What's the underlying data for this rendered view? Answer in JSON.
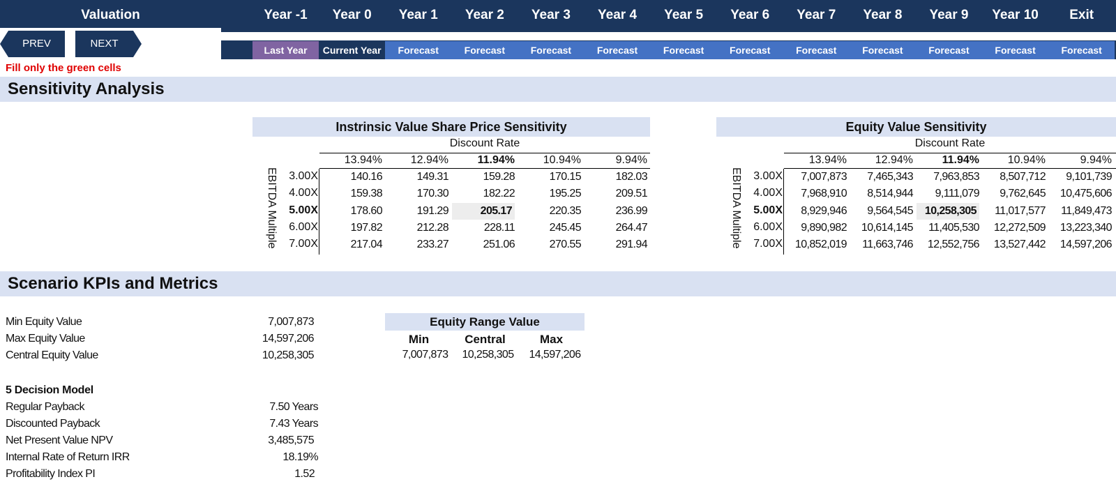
{
  "header": {
    "title": "Valuation",
    "years": [
      "Year -1",
      "Year 0",
      "Year 1",
      "Year 2",
      "Year 3",
      "Year 4",
      "Year 5",
      "Year 6",
      "Year 7",
      "Year 8",
      "Year 9",
      "Year 10",
      "Exit"
    ],
    "subs": [
      "Last Year",
      "Current Year",
      "Forecast",
      "Forecast",
      "Forecast",
      "Forecast",
      "Forecast",
      "Forecast",
      "Forecast",
      "Forecast",
      "Forecast",
      "Forecast",
      "Forecast"
    ]
  },
  "nav": {
    "prev": "PREV",
    "next": "NEXT"
  },
  "note": "Fill only the green cells",
  "sections": {
    "sensitivity": "Sensitivity Analysis",
    "kpis": "Scenario KPIs and Metrics"
  },
  "share_table": {
    "title": "Instrinsic Value Share Price Sensitivity",
    "col_title": "Discount Rate",
    "row_title": "EBITDA Multiple",
    "cols": [
      "13.94%",
      "12.94%",
      "11.94%",
      "10.94%",
      "9.94%"
    ],
    "rows": [
      "3.00X",
      "4.00X",
      "5.00X",
      "6.00X",
      "7.00X"
    ],
    "values": [
      [
        "140.16",
        "149.31",
        "159.28",
        "170.15",
        "182.03"
      ],
      [
        "159.38",
        "170.30",
        "182.22",
        "195.25",
        "209.51"
      ],
      [
        "178.60",
        "191.29",
        "205.17",
        "220.35",
        "236.99"
      ],
      [
        "197.82",
        "212.28",
        "228.11",
        "245.45",
        "264.47"
      ],
      [
        "217.04",
        "233.27",
        "251.06",
        "270.55",
        "291.94"
      ]
    ]
  },
  "equity_table": {
    "title": "Equity Value Sensitivity",
    "col_title": "Discount Rate",
    "row_title": "EBITDA Multiple",
    "cols": [
      "13.94%",
      "12.94%",
      "11.94%",
      "10.94%",
      "9.94%"
    ],
    "rows": [
      "3.00X",
      "4.00X",
      "5.00X",
      "6.00X",
      "7.00X"
    ],
    "values": [
      [
        "7,007,873",
        "7,465,343",
        "7,963,853",
        "8,507,712",
        "9,101,739"
      ],
      [
        "7,968,910",
        "8,514,944",
        "9,111,079",
        "9,762,645",
        "10,475,606"
      ],
      [
        "8,929,946",
        "9,564,545",
        "10,258,305",
        "11,017,577",
        "11,849,473"
      ],
      [
        "9,890,982",
        "10,614,145",
        "11,405,530",
        "12,272,509",
        "13,223,340"
      ],
      [
        "10,852,019",
        "11,663,746",
        "12,552,756",
        "13,527,442",
        "14,597,206"
      ]
    ]
  },
  "kpis": {
    "min_label": "Min Equity Value",
    "min_value": "7,007,873",
    "max_label": "Max Equity Value",
    "max_value": "14,597,206",
    "central_label": "Central Equity Value",
    "central_value": "10,258,305",
    "model_title": "5 Decision Model",
    "payback_label": "Regular Payback",
    "payback_value": "7.50 Years",
    "dpayback_label": "Discounted Payback",
    "dpayback_value": "7.43 Years",
    "npv_label": "Net Present Value NPV",
    "npv_value": "3,485,575",
    "irr_label": "Internal Rate of Return IRR",
    "irr_value": "18.19%",
    "pi_label": "Profitability Index PI",
    "pi_value": "1.52"
  },
  "equity_range": {
    "title": "Equity Range Value",
    "min_h": "Min",
    "central_h": "Central",
    "max_h": "Max",
    "min_v": "7,007,873",
    "central_v": "10,258,305",
    "max_v": "14,597,206"
  },
  "colors": {
    "navy": "#1b365d",
    "forecast": "#4472c4",
    "last_year": "#8064a2",
    "band": "#d9e1f2",
    "note": "#e00000"
  }
}
